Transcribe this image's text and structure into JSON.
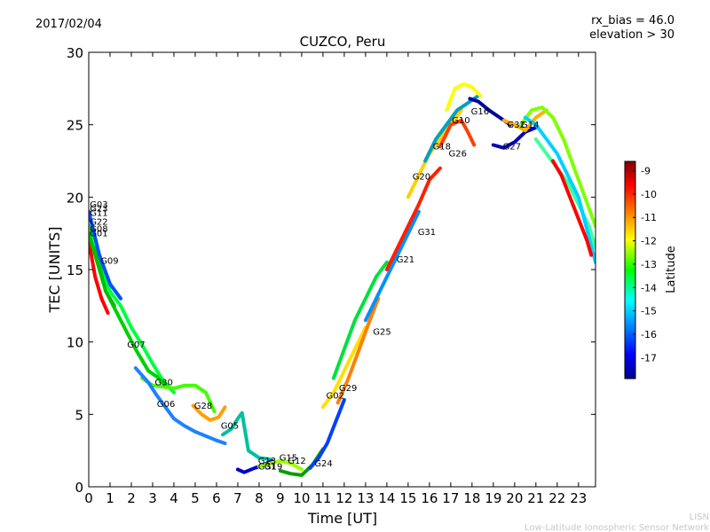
{
  "header": {
    "date": "2017/02/04",
    "rx_bias": "rx_bias = 46.0",
    "elevation": "elevation > 30"
  },
  "footer": {
    "line1": "LISN",
    "line2": "Low-Latitude Ionospheric Sensor Network"
  },
  "colorbar": {
    "label": "Latitude",
    "ticks": [
      "-9",
      "-10",
      "-11",
      "-12",
      "-13",
      "-14",
      "-15",
      "-16",
      "-17"
    ],
    "tick_values": [
      -9,
      -10,
      -11,
      -12,
      -13,
      -14,
      -15,
      -16,
      -17
    ],
    "range": [
      -17.9,
      -8.6
    ],
    "colormap": "jet"
  },
  "chart_data": {
    "type": "scatter",
    "title": "CUZCO, Peru",
    "xlabel": "Time [UT]",
    "ylabel": "TEC [UNITS]",
    "xlim": [
      0,
      23.8
    ],
    "ylim": [
      0,
      30
    ],
    "xticks": [
      0,
      1,
      2,
      3,
      4,
      5,
      6,
      7,
      8,
      9,
      10,
      11,
      12,
      13,
      14,
      15,
      16,
      17,
      18,
      19,
      20,
      21,
      22,
      23
    ],
    "yticks": [
      0,
      5,
      10,
      15,
      20,
      25,
      30
    ],
    "grid": false,
    "series": [
      {
        "name": "G09",
        "color": "#00ff40",
        "x": [
          0,
          0.5,
          1,
          1.5,
          2,
          2.5,
          3,
          3.5,
          4
        ],
        "y": [
          18,
          15.5,
          13.5,
          12.5,
          11,
          9.8,
          8.5,
          7.3,
          6.5
        ]
      },
      {
        "name": "G07",
        "color": "#00d000",
        "x": [
          0.3,
          0.8,
          1.5,
          2.2,
          2.8,
          3.2,
          3.6
        ],
        "y": [
          16.5,
          13.5,
          11.5,
          9.5,
          8,
          7.6,
          7
        ]
      },
      {
        "name": "G30",
        "color": "#40ff00",
        "x": [
          2.5,
          3,
          3.5,
          4,
          4.5,
          5,
          5.5,
          5.9
        ],
        "y": [
          7.5,
          7,
          6.9,
          6.8,
          7,
          7,
          6.5,
          5.2
        ]
      },
      {
        "name": "G06",
        "color": "#2080ff",
        "x": [
          2.2,
          2.8,
          3.2,
          3.6,
          4,
          4.5,
          5,
          5.5,
          6,
          6.4
        ],
        "y": [
          8.2,
          7.2,
          6.3,
          5.5,
          4.7,
          4.2,
          3.8,
          3.5,
          3.2,
          3
        ]
      },
      {
        "name": "G28",
        "color": "#ffa000",
        "x": [
          4.9,
          5.3,
          5.7,
          6.1,
          6.4
        ],
        "y": [
          5.6,
          5,
          4.6,
          4.8,
          5.5
        ]
      },
      {
        "name": "G05",
        "color": "#00c0a0",
        "x": [
          6.3,
          6.7,
          7,
          7.2,
          7.5,
          8,
          8.5
        ],
        "y": [
          3.6,
          4,
          4.7,
          5.1,
          2.5,
          2,
          1.9
        ]
      },
      {
        "name": "G13",
        "color": "#0000cc",
        "x": [
          7,
          7.3,
          7.8,
          8.2,
          8.6
        ],
        "y": [
          1.2,
          1,
          1.3,
          1.5,
          1.8
        ]
      },
      {
        "name": "G15",
        "color": "#a0ff00",
        "x": [
          8,
          8.5,
          9,
          9.5,
          10
        ],
        "y": [
          1.4,
          1.6,
          1.8,
          1.6,
          1.2
        ]
      },
      {
        "name": "G12",
        "color": "#00a000",
        "x": [
          9,
          9.5,
          10,
          10.5,
          11
        ],
        "y": [
          1.1,
          0.9,
          0.8,
          1.5,
          2.6
        ]
      },
      {
        "name": "G24",
        "color": "#0040ff",
        "x": [
          10.4,
          10.8,
          11.2,
          11.6,
          12
        ],
        "y": [
          1.3,
          2,
          3,
          4.5,
          6
        ]
      },
      {
        "name": "G02",
        "color": "#ffe000",
        "x": [
          11,
          11.5,
          12,
          12.5,
          13
        ],
        "y": [
          5.5,
          6.5,
          8,
          9.5,
          11
        ]
      },
      {
        "name": "G29",
        "color": "#ff8000",
        "x": [
          11.7,
          12.2,
          12.7,
          13.2,
          13.6
        ],
        "y": [
          5.8,
          7.5,
          9.5,
          11.5,
          13
        ]
      },
      {
        "name": "G25",
        "color": "#00e040",
        "x": [
          11.5,
          12,
          12.5,
          13,
          13.5,
          14
        ],
        "y": [
          7.5,
          9.5,
          11.5,
          13,
          14.5,
          15.5
        ]
      },
      {
        "name": "G21",
        "color": "#0090ff",
        "x": [
          13,
          13.5,
          14,
          14.5,
          15,
          15.5
        ],
        "y": [
          11.5,
          13,
          14.5,
          16,
          17.5,
          19
        ]
      },
      {
        "name": "G31",
        "color": "#ff2000",
        "x": [
          14,
          14.5,
          15,
          15.5,
          16,
          16.5
        ],
        "y": [
          15,
          16.5,
          18,
          19.5,
          21.2,
          22
        ]
      },
      {
        "name": "G20",
        "color": "#ffd000",
        "x": [
          15,
          15.5,
          16,
          16.5,
          17,
          17.5
        ],
        "y": [
          20,
          21.5,
          23,
          24,
          25,
          26
        ]
      },
      {
        "name": "G18",
        "color": "#00a0c0",
        "x": [
          15.8,
          16.3,
          16.8,
          17.3,
          17.8,
          18.3
        ],
        "y": [
          22.5,
          24,
          25,
          26,
          26.5,
          27
        ]
      },
      {
        "name": "G26",
        "color": "#ff4000",
        "x": [
          16.5,
          17,
          17.5,
          17.8,
          18.1
        ],
        "y": [
          23.5,
          25,
          25.3,
          24.5,
          23.6
        ]
      },
      {
        "name": "G10",
        "color": "#ffff00",
        "x": [
          16.8,
          17.2,
          17.6,
          18,
          18.4
        ],
        "y": [
          26,
          27.5,
          27.8,
          27.6,
          27
        ]
      },
      {
        "name": "G16",
        "color": "#0000a0",
        "x": [
          17.9,
          18.3,
          18.8,
          19.3,
          19.8
        ],
        "y": [
          26.8,
          26.6,
          26,
          25.5,
          25
        ]
      },
      {
        "name": "G27",
        "color": "#0000c0",
        "x": [
          19,
          19.5,
          20,
          20.5,
          21
        ],
        "y": [
          23.6,
          23.4,
          23.8,
          24.5,
          24.8
        ]
      },
      {
        "name": "G32",
        "color": "#ffb000",
        "x": [
          19.5,
          20,
          20.5,
          21,
          21.5
        ],
        "y": [
          25.3,
          25,
          24.6,
          25.5,
          26
        ]
      },
      {
        "name": "G14",
        "color": "#80ff00",
        "x": [
          20.3,
          20.8,
          21.3,
          21.8,
          22.3,
          22.8,
          23.3,
          23.8
        ],
        "y": [
          25,
          26,
          26.2,
          25.5,
          24,
          22,
          20,
          18
        ]
      },
      {
        "name": "G01",
        "color": "#40ffa0",
        "x": [
          21,
          21.5,
          22,
          22.5,
          23,
          23.5,
          23.8
        ],
        "y": [
          24,
          23,
          22,
          21,
          19.5,
          18,
          16.5
        ]
      },
      {
        "name": "G22",
        "color": "#00d0ff",
        "x": [
          20.5,
          21,
          21.5,
          22,
          22.5,
          23,
          23.8
        ],
        "y": [
          25.5,
          25,
          24,
          23,
          21.5,
          20,
          15.5
        ]
      },
      {
        "name": "G03",
        "color": "#ff0000",
        "x": [
          21.8,
          22.2,
          22.6,
          23,
          23.4,
          23.6
        ],
        "y": [
          22.5,
          21.5,
          20,
          18.5,
          17,
          16
        ]
      },
      {
        "name": "G11",
        "color": "#0050ff",
        "x": [
          0,
          0.5,
          1,
          1.5
        ],
        "y": [
          19,
          16,
          14,
          13
        ]
      },
      {
        "name": "G23",
        "color": "#ff0000",
        "x": [
          0,
          0.3,
          0.6,
          0.9
        ],
        "y": [
          17,
          14.5,
          13,
          12
        ]
      },
      {
        "name": "G08",
        "color": "#00c000",
        "x": [
          0,
          0.4,
          0.8,
          1.2
        ],
        "y": [
          17.5,
          15.5,
          13.5,
          12.5
        ]
      }
    ],
    "labels": [
      {
        "text": "G03",
        "x": 0.05,
        "y": 19.3
      },
      {
        "text": "G23",
        "x": 0.05,
        "y": 19.0
      },
      {
        "text": "G11",
        "x": 0.05,
        "y": 18.7
      },
      {
        "text": "G22",
        "x": 0.05,
        "y": 18.1
      },
      {
        "text": "G08",
        "x": 0.05,
        "y": 17.6
      },
      {
        "text": "G01",
        "x": 0.05,
        "y": 17.3
      },
      {
        "text": "G09",
        "x": 0.55,
        "y": 15.4
      },
      {
        "text": "G07",
        "x": 1.8,
        "y": 9.6
      },
      {
        "text": "G30",
        "x": 3.1,
        "y": 7.0
      },
      {
        "text": "G06",
        "x": 3.2,
        "y": 5.5
      },
      {
        "text": "G28",
        "x": 4.95,
        "y": 5.4
      },
      {
        "text": "G05",
        "x": 6.2,
        "y": 4.0
      },
      {
        "text": "G13",
        "x": 7.95,
        "y": 1.6
      },
      {
        "text": "G15",
        "x": 8.95,
        "y": 1.8
      },
      {
        "text": "G12",
        "x": 9.35,
        "y": 1.6
      },
      {
        "text": "G31",
        "x": 7.95,
        "y": 1.2
      },
      {
        "text": "G19",
        "x": 8.25,
        "y": 1.2
      },
      {
        "text": "G24",
        "x": 10.6,
        "y": 1.4
      },
      {
        "text": "G02",
        "x": 11.15,
        "y": 6.1
      },
      {
        "text": "G29",
        "x": 11.75,
        "y": 6.6
      },
      {
        "text": "G25",
        "x": 13.35,
        "y": 10.5
      },
      {
        "text": "G21",
        "x": 14.45,
        "y": 15.5
      },
      {
        "text": "G31",
        "x": 15.45,
        "y": 17.4
      },
      {
        "text": "G20",
        "x": 15.2,
        "y": 21.2
      },
      {
        "text": "G18",
        "x": 16.15,
        "y": 23.3
      },
      {
        "text": "G26",
        "x": 16.9,
        "y": 22.8
      },
      {
        "text": "G10",
        "x": 17.05,
        "y": 25.1
      },
      {
        "text": "G16",
        "x": 17.95,
        "y": 25.7
      },
      {
        "text": "G27",
        "x": 19.45,
        "y": 23.3
      },
      {
        "text": "G32",
        "x": 19.65,
        "y": 24.8
      },
      {
        "text": "G14",
        "x": 20.3,
        "y": 24.8
      }
    ]
  }
}
